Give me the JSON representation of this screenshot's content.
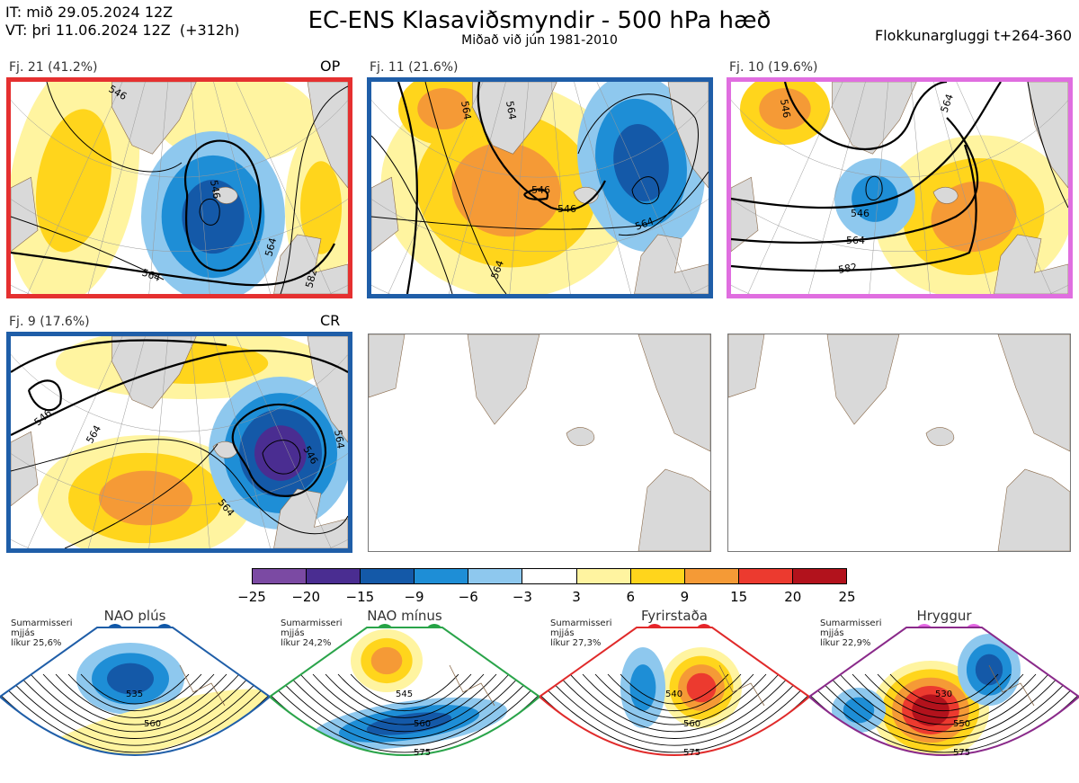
{
  "header": {
    "it_line": "IT: mið 29.05.2024 12Z",
    "vt_line": "VT: þri 11.06.2024 12Z  (+312h)",
    "title": "EC-ENS Klasaviðsmyndir - 500 hPa hæð",
    "subtitle": "Miðað við jún 1981-2010",
    "window": "Flokkunargluggi t+264-360"
  },
  "panels": [
    {
      "label": "Fj. 21 (41.2%)",
      "tag": "OP",
      "border": "#e53030",
      "contours": [
        "546",
        "546",
        "564",
        "564",
        "582"
      ]
    },
    {
      "label": "Fj. 11 (21.6%)",
      "tag": "",
      "border": "#1f5ea8",
      "contours": [
        "546",
        "546",
        "564",
        "564",
        "564",
        "564"
      ]
    },
    {
      "label": "Fj. 10 (19.6%)",
      "tag": "",
      "border": "#e06ee0",
      "contours": [
        "546",
        "546",
        "564",
        "564",
        "582"
      ]
    },
    {
      "label": "Fj. 9 (17.6%)",
      "tag": "CR",
      "border": "#1f5ea8",
      "contours": [
        "546",
        "546",
        "564",
        "564",
        "564"
      ]
    }
  ],
  "chart_data": {
    "type": "heatmap",
    "colorbar": {
      "ticks": [
        "−25",
        "−20",
        "−15",
        "−9",
        "−6",
        "−3",
        "3",
        "6",
        "9",
        "15",
        "20",
        "25"
      ],
      "colors": [
        "#7b4aa3",
        "#4a2d91",
        "#1459a8",
        "#1e8ed6",
        "#8ec8ee",
        "#ffffff",
        "#fff4a0",
        "#ffd51c",
        "#f59a36",
        "#ec3a2f",
        "#b2121c"
      ]
    }
  },
  "regimes": [
    {
      "name": "NAO plús",
      "note": "Sumarmisseri\nmjjás\nlíkur 25,6%",
      "color": "#1f5ea8",
      "dot": "#0b55a8",
      "labels": [
        "535",
        "560"
      ]
    },
    {
      "name": "NAO mínus",
      "note": "Sumarmisseri\nmjjás\nlíkur 24,2%",
      "color": "#2aa44a",
      "dot": "#23a243",
      "labels": [
        "545",
        "560",
        "575"
      ]
    },
    {
      "name": "Fyrirstaða",
      "note": "Sumarmisseri\nmjjás\nlíkur 27,3%",
      "color": "#e02a2a",
      "dot": "#e8222a",
      "labels": [
        "540",
        "560",
        "575"
      ]
    },
    {
      "name": "Hryggur",
      "note": "Sumarmisseri\nmjjás\nlíkur 22,9%",
      "color": "#8a2a8a",
      "dot": "#e467e4",
      "labels": [
        "530",
        "550",
        "575"
      ]
    }
  ]
}
